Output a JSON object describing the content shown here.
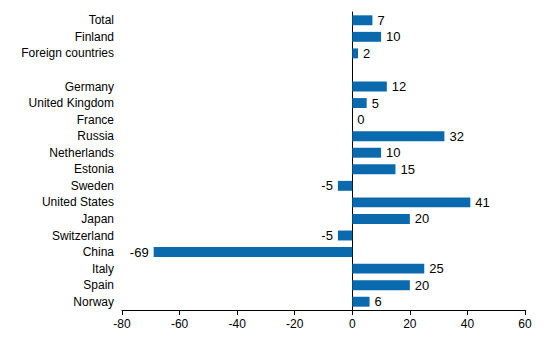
{
  "chart_data": {
    "type": "bar",
    "orientation": "horizontal",
    "categories": [
      "Total",
      "Finland",
      "Foreign countries",
      null,
      "Germany",
      "United Kingdom",
      "France",
      "Russia",
      "Netherlands",
      "Estonia",
      "Sweden",
      "United States",
      "Japan",
      "Switzerland",
      "China",
      "Italy",
      "Spain",
      "Norway"
    ],
    "values": [
      7,
      10,
      2,
      null,
      12,
      5,
      0,
      32,
      10,
      15,
      -5,
      41,
      20,
      -5,
      -69,
      25,
      20,
      6
    ],
    "color": "#0b6aae",
    "xlim": [
      -80,
      60
    ],
    "xticks": [
      -80,
      -60,
      -40,
      -20,
      0,
      20,
      40,
      60
    ],
    "grid": false,
    "data_labels": true
  }
}
